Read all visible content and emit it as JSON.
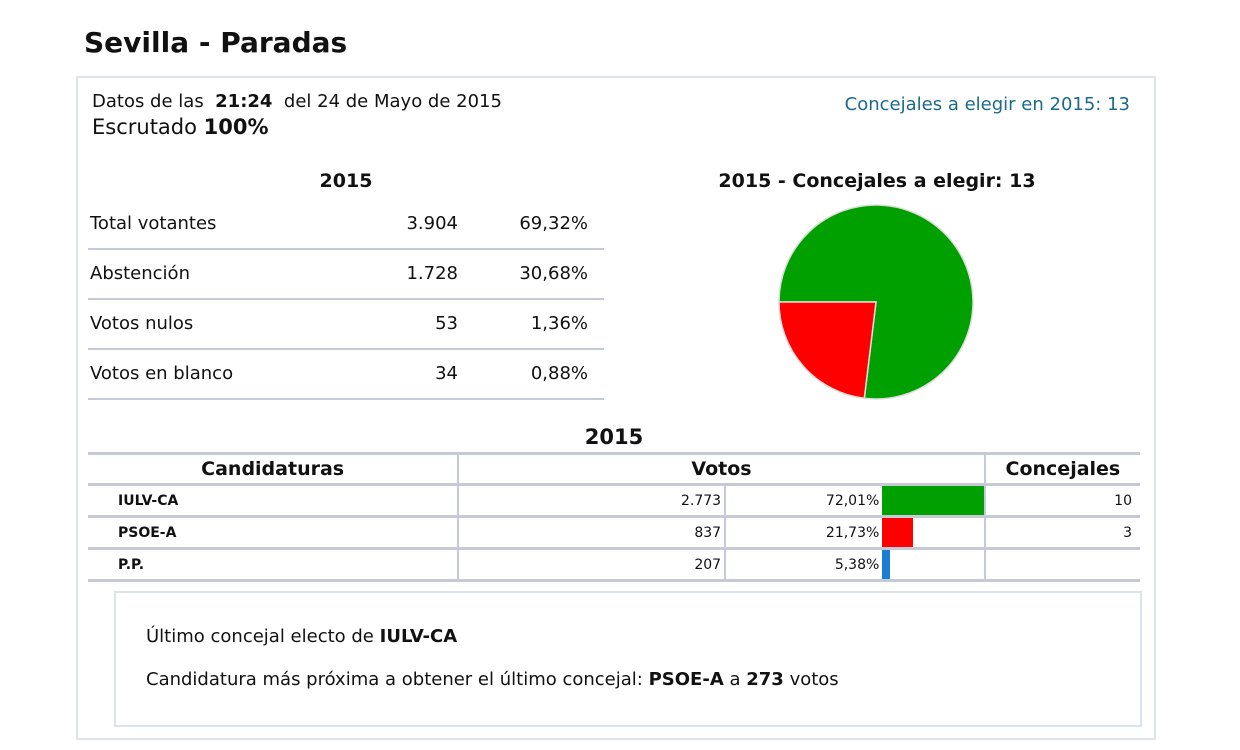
{
  "title": "Sevilla - Paradas",
  "header": {
    "datos_prefix": "Datos de las",
    "time": "21:24",
    "date": "del 24 de Mayo de 2015",
    "escrutado_label": "Escrutado",
    "escrutado_value": "100%",
    "concejales_link": "Concejales a elegir en 2015: 13"
  },
  "summary": {
    "year": "2015",
    "rows": [
      {
        "label": "Total votantes",
        "value": "3.904",
        "pct": "69,32%"
      },
      {
        "label": "Abstención",
        "value": "1.728",
        "pct": "30,68%"
      },
      {
        "label": "Votos nulos",
        "value": "53",
        "pct": "1,36%"
      },
      {
        "label": "Votos en blanco",
        "value": "34",
        "pct": "0,88%"
      }
    ]
  },
  "chart_data": {
    "type": "pie",
    "title": "2015 - Concejales a elegir: 13",
    "categories": [
      "IULV-CA",
      "PSOE-A"
    ],
    "values": [
      10,
      3
    ],
    "colors": [
      "#00a000",
      "#ff0000"
    ]
  },
  "results": {
    "year": "2015",
    "headers": [
      "Candidaturas",
      "Votos",
      "Concejales"
    ],
    "rows": [
      {
        "party": "IULV-CA",
        "votes": "2.773",
        "pct": "72,01%",
        "pct_value": 72.01,
        "color": "#00a000",
        "seats": "10"
      },
      {
        "party": "PSOE-A",
        "votes": "837",
        "pct": "21,73%",
        "pct_value": 21.73,
        "color": "#ff0000",
        "seats": "3"
      },
      {
        "party": "P.P.",
        "votes": "207",
        "pct": "5,38%",
        "pct_value": 5.38,
        "color": "#1a7fd0",
        "seats": ""
      }
    ]
  },
  "footer": {
    "line1_prefix": "Último concejal electo de",
    "line1_party": "IULV-CA",
    "line2_prefix": "Candidatura más próxima a obtener el último concejal:",
    "line2_party": "PSOE-A",
    "line2_mid": "a",
    "line2_votes": "273",
    "line2_suffix": "votos"
  }
}
